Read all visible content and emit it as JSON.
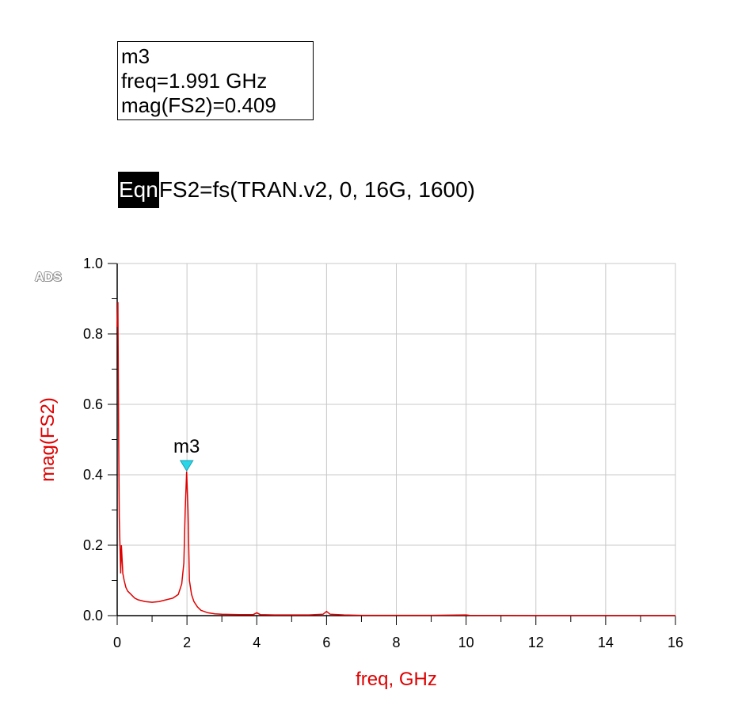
{
  "marker_readout": {
    "name": "m3",
    "freq_line": "freq=1.991 GHz",
    "mag_line": "mag(FS2)=0.409"
  },
  "equation": {
    "tag": "Eqn",
    "text": "FS2=fs(TRAN.v2, 0, 16G, 1600)"
  },
  "logo": "ADS",
  "colors": {
    "trace": "#e00000",
    "marker": "#29d6e8",
    "grid": "#c8c8c8",
    "axis": "#000000"
  },
  "chart_data": {
    "type": "line",
    "xlabel": "freq, GHz",
    "ylabel": "mag(FS2)",
    "xlim": [
      0,
      16
    ],
    "ylim": [
      0,
      1.0
    ],
    "xticks": [
      "0",
      "2",
      "4",
      "6",
      "8",
      "10",
      "12",
      "14",
      "16"
    ],
    "yticks": [
      "0.0",
      "0.2",
      "0.4",
      "0.6",
      "0.8",
      "1.0"
    ],
    "grid": true,
    "marker": {
      "label": "m3",
      "x": 1.991,
      "y": 0.409
    },
    "series": [
      {
        "x": [
          0.0,
          0.02,
          0.04,
          0.06,
          0.1,
          0.12,
          0.16,
          0.2,
          0.25,
          0.3,
          0.4,
          0.5,
          0.6,
          0.8,
          1.0,
          1.2,
          1.4,
          1.6,
          1.75,
          1.85,
          1.91,
          1.95,
          1.991,
          2.03,
          2.07,
          2.13,
          2.2,
          2.3,
          2.4,
          2.6,
          2.8,
          3.0,
          3.5,
          3.9,
          4.0,
          4.1,
          4.5,
          5.0,
          5.5,
          5.9,
          6.0,
          6.1,
          6.5,
          7.0,
          8.0,
          9.0,
          10.0,
          10.1,
          12.0,
          14.0,
          16.0
        ],
        "y": [
          0.82,
          0.89,
          0.52,
          0.28,
          0.12,
          0.2,
          0.12,
          0.1,
          0.08,
          0.07,
          0.06,
          0.05,
          0.045,
          0.04,
          0.038,
          0.04,
          0.045,
          0.05,
          0.06,
          0.09,
          0.15,
          0.3,
          0.409,
          0.3,
          0.1,
          0.06,
          0.04,
          0.025,
          0.015,
          0.008,
          0.005,
          0.004,
          0.003,
          0.003,
          0.008,
          0.003,
          0.002,
          0.002,
          0.002,
          0.004,
          0.012,
          0.004,
          0.002,
          0.001,
          0.001,
          0.001,
          0.002,
          0.001,
          0.0,
          0.0,
          0.0
        ]
      }
    ]
  }
}
